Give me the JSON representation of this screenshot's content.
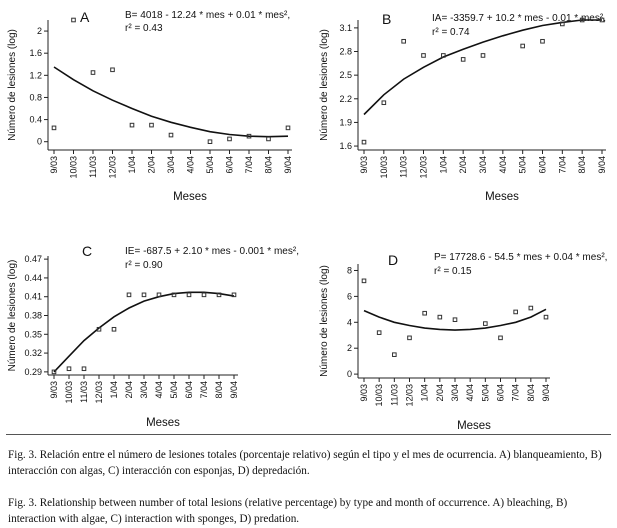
{
  "figure": {
    "caption_es": "Fig. 3. Relación entre el número de lesiones totales (porcentaje relativo) según el tipo y el mes de ocurrencia. A) blanqueamiento, B) interacción con algas, C) interacción con esponjas, D) depredación.",
    "caption_en": "Fig. 3. Relationship between number of total lesions (relative percentage) by type and month of occurrence. A) bleaching, B) interaction with algae, C) interaction with sponges, D) predation."
  },
  "chart_data": [
    {
      "type": "scatter",
      "panel": "A",
      "equation": "B= 4018 - 12.24 * mes  + 0.01 * mes²,",
      "r2": "r² = 0.43",
      "xlabel": "Meses",
      "ylabel": "Número de lesiones (log)",
      "categories": [
        "9/03",
        "10/03",
        "11/03",
        "12/03",
        "1/04",
        "2/04",
        "3/04",
        "4/04",
        "5/04",
        "6/04",
        "7/04",
        "8/04",
        "9/04"
      ],
      "yticks": [
        "0",
        "0.4",
        "0.8",
        "1.2",
        "1.6",
        "2"
      ],
      "ylim": [
        -0.15,
        2.2
      ],
      "values": [
        0.25,
        2.2,
        1.25,
        1.3,
        0.3,
        0.3,
        0.12,
        null,
        0.0,
        0.05,
        0.1,
        0.05,
        0.25
      ],
      "fit": [
        1.35,
        1.12,
        0.92,
        0.75,
        0.6,
        0.46,
        0.35,
        0.26,
        0.18,
        0.13,
        0.1,
        0.09,
        0.1
      ]
    },
    {
      "type": "scatter",
      "panel": "B",
      "equation": "IA= -3359.7 + 10.2 * mes - 0.01 * mes²,",
      "r2": "r² = 0.74",
      "xlabel": "Meses",
      "ylabel": "Número de lesiones (log)",
      "categories": [
        "9/03",
        "10/03",
        "11/03",
        "12/03",
        "1/04",
        "2/04",
        "3/04",
        "4/04",
        "5/04",
        "6/04",
        "7/04",
        "8/04",
        "9/04"
      ],
      "yticks": [
        "1.6",
        "1.9",
        "2.2",
        "2.5",
        "2.8",
        "3.1"
      ],
      "ylim": [
        1.55,
        3.2
      ],
      "values": [
        1.65,
        2.15,
        2.93,
        2.75,
        2.75,
        2.7,
        2.75,
        null,
        2.87,
        2.93,
        3.15,
        3.2,
        3.2
      ],
      "fit": [
        2.0,
        2.25,
        2.45,
        2.6,
        2.73,
        2.83,
        2.92,
        3.0,
        3.07,
        3.13,
        3.17,
        3.2,
        3.2
      ]
    },
    {
      "type": "scatter",
      "panel": "C",
      "equation": "IE= -687.5 + 2.10 * mes  - 0.001 * mes²,",
      "r2": "r² = 0.90",
      "xlabel": "Meses",
      "ylabel": "Número de lesiones (log)",
      "categories": [
        "9/03",
        "10/03",
        "11/03",
        "12/03",
        "1/04",
        "2/04",
        "3/04",
        "4/04",
        "5/04",
        "6/04",
        "7/04",
        "8/04",
        "9/04"
      ],
      "yticks": [
        "0.29",
        "0.32",
        "0.35",
        "0.38",
        "0.41",
        "0.44",
        "0.47"
      ],
      "ylim": [
        0.285,
        0.475
      ],
      "values": [
        0.29,
        0.295,
        0.295,
        0.358,
        0.358,
        0.413,
        0.413,
        0.413,
        0.413,
        0.413,
        0.413,
        0.413,
        0.413
      ],
      "fit": [
        0.29,
        0.315,
        0.34,
        0.36,
        0.378,
        0.392,
        0.403,
        0.41,
        0.415,
        0.417,
        0.417,
        0.415,
        0.411
      ]
    },
    {
      "type": "scatter",
      "panel": "D",
      "equation": "P= 17728.6 - 54.5 * mes  + 0.04 * mes²,",
      "r2": "r² = 0.15",
      "xlabel": "Meses",
      "ylabel": "Número de lesiones (log)",
      "categories": [
        "9/03",
        "10/03",
        "11/03",
        "12/03",
        "1/04",
        "2/04",
        "3/04",
        "4/04",
        "5/04",
        "6/04",
        "7/04",
        "8/04",
        "9/04"
      ],
      "yticks": [
        "0",
        "2",
        "4",
        "6",
        "8"
      ],
      "ylim": [
        -0.3,
        8.5
      ],
      "values": [
        7.2,
        3.2,
        1.5,
        2.8,
        4.7,
        4.4,
        4.2,
        null,
        3.9,
        2.8,
        4.8,
        5.1,
        4.4
      ],
      "fit": [
        4.9,
        4.4,
        4.0,
        3.75,
        3.55,
        3.45,
        3.4,
        3.45,
        3.55,
        3.75,
        4.0,
        4.4,
        5.0
      ]
    }
  ]
}
